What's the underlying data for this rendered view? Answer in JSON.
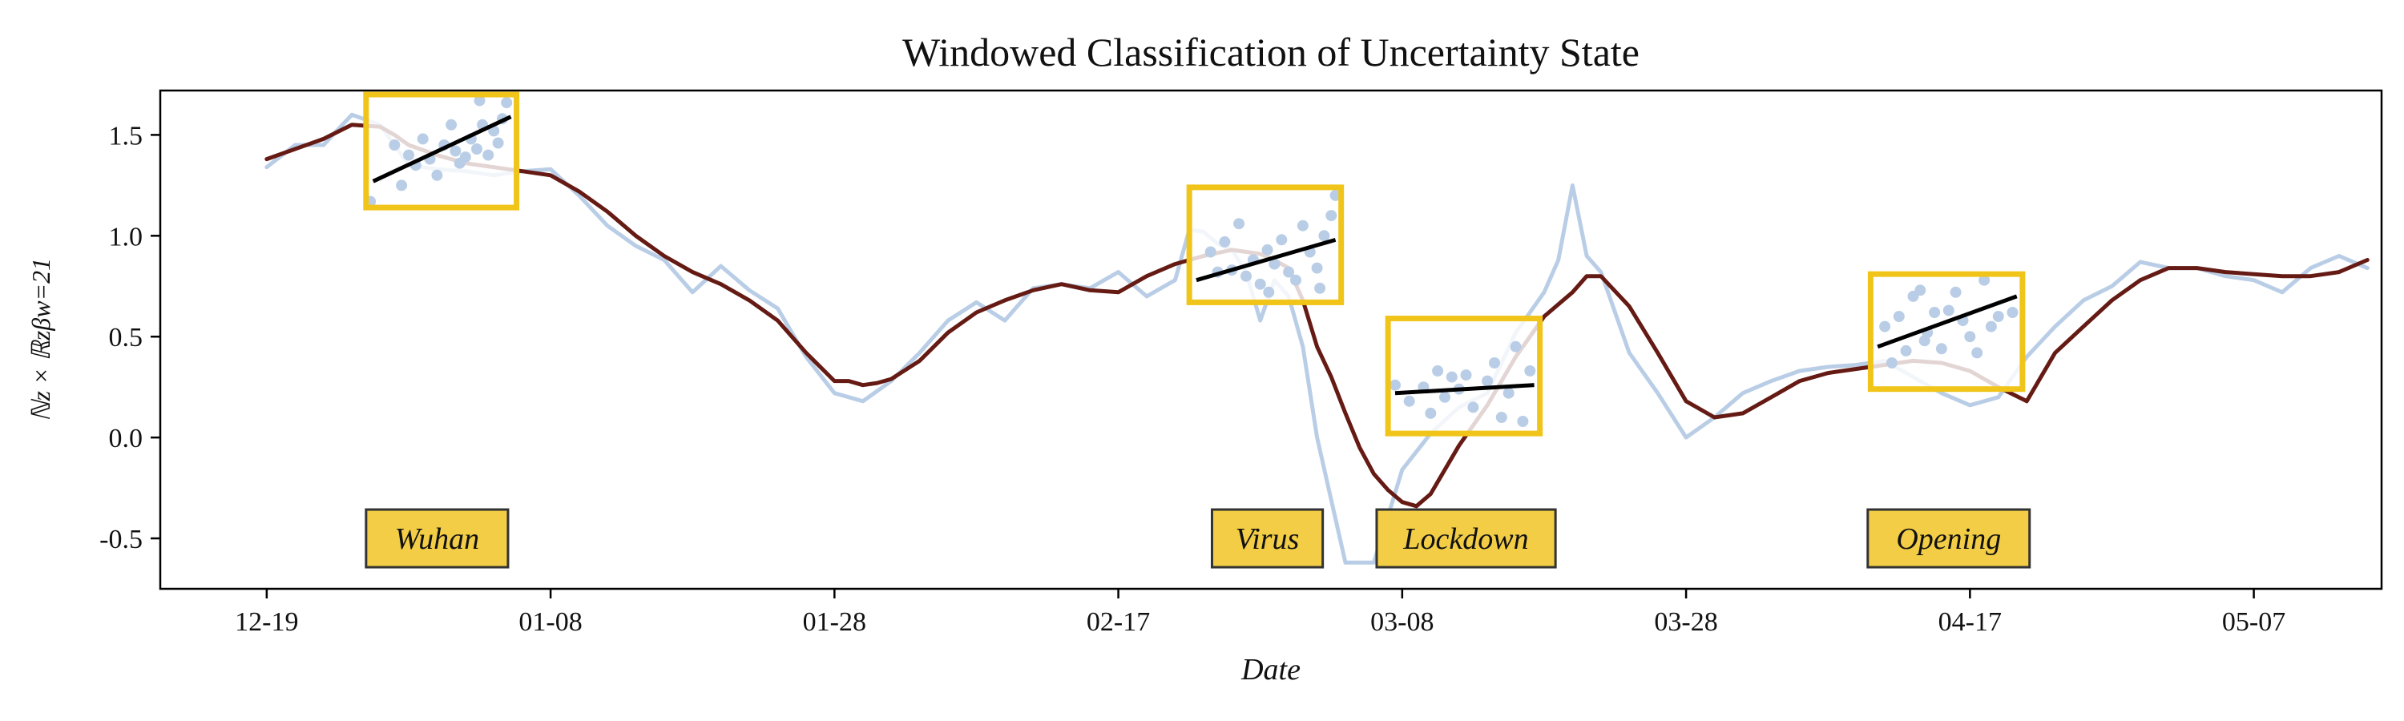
{
  "chart_data": {
    "type": "line",
    "title": "Windowed Classification of Uncertainty State",
    "xlabel": "Date",
    "ylabel": "ℕz × ℝzβw=21",
    "ylim": [
      -0.75,
      1.72
    ],
    "yticks": [
      {
        "value": 1.5,
        "label": "1.5"
      },
      {
        "value": 1.0,
        "label": "1.0"
      },
      {
        "value": 0.5,
        "label": "0.5"
      },
      {
        "value": 0.0,
        "label": "0.0"
      },
      {
        "value": -0.5,
        "label": "-0.5"
      }
    ],
    "xlim": [
      -7.5,
      149
    ],
    "xticks": [
      {
        "value": 0,
        "label": "12-19"
      },
      {
        "value": 20,
        "label": "01-08"
      },
      {
        "value": 40,
        "label": "01-28"
      },
      {
        "value": 60,
        "label": "02-17"
      },
      {
        "value": 80,
        "label": "03-08"
      },
      {
        "value": 100,
        "label": "03-28"
      },
      {
        "value": 120,
        "label": "04-17"
      },
      {
        "value": 140,
        "label": "05-07"
      }
    ],
    "colors": {
      "raw": "#b9cee6",
      "smooth": "#651a14",
      "box": "#f0c419",
      "label_fill": "#f2cd45",
      "fit": "#000000"
    },
    "series": [
      {
        "key": "raw",
        "x": [
          0,
          2,
          4,
          6,
          8,
          10,
          12,
          14,
          16,
          18,
          20,
          22,
          24,
          26,
          28,
          30,
          32,
          34,
          36,
          38,
          40,
          42,
          44,
          46,
          48,
          50,
          52,
          54,
          56,
          58,
          60,
          62,
          64,
          65,
          66,
          67,
          68,
          69,
          70,
          71,
          72,
          73,
          74,
          76,
          78,
          80,
          82,
          84,
          86,
          88,
          90,
          91,
          92,
          93,
          94,
          96,
          98,
          100,
          102,
          104,
          106,
          108,
          110,
          112,
          114,
          116,
          118,
          120,
          122,
          124,
          126,
          128,
          130,
          132,
          134,
          136,
          138,
          140,
          142,
          144,
          146,
          148
        ],
        "y": [
          1.34,
          1.45,
          1.45,
          1.6,
          1.55,
          1.35,
          1.33,
          1.32,
          1.3,
          1.32,
          1.33,
          1.2,
          1.05,
          0.95,
          0.88,
          0.72,
          0.85,
          0.73,
          0.64,
          0.4,
          0.22,
          0.18,
          0.28,
          0.42,
          0.58,
          0.67,
          0.58,
          0.74,
          0.76,
          0.74,
          0.82,
          0.7,
          0.78,
          1.03,
          1.02,
          0.96,
          0.93,
          0.82,
          0.58,
          0.78,
          0.7,
          0.45,
          0.0,
          -0.62,
          -0.62,
          -0.16,
          0.02,
          0.15,
          0.22,
          0.52,
          0.72,
          0.88,
          1.25,
          0.9,
          0.82,
          0.42,
          0.22,
          0.0,
          0.1,
          0.22,
          0.28,
          0.33,
          0.35,
          0.36,
          0.38,
          0.3,
          0.22,
          0.16,
          0.2,
          0.4,
          0.55,
          0.68,
          0.75,
          0.87,
          0.84,
          0.84,
          0.8,
          0.78,
          0.72,
          0.84,
          0.9,
          0.84
        ]
      },
      {
        "key": "smooth",
        "x": [
          0,
          2,
          4,
          6,
          8,
          9,
          10,
          12,
          14,
          16,
          18,
          20,
          22,
          24,
          26,
          28,
          30,
          32,
          34,
          36,
          38,
          40,
          41,
          42,
          43,
          44,
          46,
          48,
          50,
          52,
          54,
          56,
          58,
          60,
          62,
          64,
          66,
          68,
          70,
          71,
          72,
          73,
          74,
          75,
          76,
          77,
          78,
          79,
          80,
          81,
          82,
          84,
          86,
          88,
          90,
          92,
          93,
          94,
          96,
          98,
          100,
          102,
          104,
          106,
          108,
          110,
          112,
          114,
          116,
          118,
          120,
          122,
          124,
          126,
          128,
          130,
          132,
          134,
          136,
          138,
          140,
          142,
          144,
          146,
          148
        ],
        "y": [
          1.38,
          1.43,
          1.48,
          1.55,
          1.54,
          1.5,
          1.45,
          1.4,
          1.36,
          1.34,
          1.32,
          1.3,
          1.22,
          1.12,
          1.0,
          0.9,
          0.82,
          0.76,
          0.68,
          0.58,
          0.42,
          0.28,
          0.28,
          0.26,
          0.27,
          0.29,
          0.38,
          0.52,
          0.62,
          0.68,
          0.73,
          0.76,
          0.73,
          0.72,
          0.8,
          0.86,
          0.9,
          0.93,
          0.91,
          0.88,
          0.84,
          0.68,
          0.45,
          0.3,
          0.12,
          -0.05,
          -0.18,
          -0.26,
          -0.32,
          -0.34,
          -0.28,
          -0.04,
          0.16,
          0.4,
          0.6,
          0.72,
          0.8,
          0.8,
          0.65,
          0.42,
          0.18,
          0.1,
          0.12,
          0.2,
          0.28,
          0.32,
          0.34,
          0.36,
          0.38,
          0.37,
          0.33,
          0.25,
          0.18,
          0.42,
          0.55,
          0.68,
          0.78,
          0.84,
          0.84,
          0.82,
          0.81,
          0.8,
          0.8,
          0.82,
          0.88
        ]
      }
    ],
    "events": [
      {
        "label": "Wuhan",
        "box": {
          "x0": 7,
          "x1": 17.6,
          "y0": 1.14,
          "y1": 1.7
        },
        "fit": [
          [
            7.5,
            1.27
          ],
          [
            17.2,
            1.59
          ]
        ],
        "points": [
          [
            9,
            1.45
          ],
          [
            9.5,
            1.25
          ],
          [
            10,
            1.4
          ],
          [
            10.5,
            1.35
          ],
          [
            11,
            1.48
          ],
          [
            11.5,
            1.38
          ],
          [
            12,
            1.3
          ],
          [
            12.5,
            1.45
          ],
          [
            13,
            1.55
          ],
          [
            13.3,
            1.42
          ],
          [
            13.6,
            1.36
          ],
          [
            14,
            1.39
          ],
          [
            14.4,
            1.48
          ],
          [
            14.8,
            1.43
          ],
          [
            15.2,
            1.55
          ],
          [
            15.6,
            1.4
          ],
          [
            16,
            1.52
          ],
          [
            16.3,
            1.46
          ],
          [
            16.6,
            1.58
          ],
          [
            15,
            1.67
          ],
          [
            16.9,
            1.66
          ],
          [
            7.3,
            1.17
          ]
        ],
        "label_pos": {
          "x": 12,
          "y": -0.5
        },
        "label_w": 10
      },
      {
        "label": "Virus",
        "box": {
          "x0": 65,
          "x1": 75.7,
          "y0": 0.67,
          "y1": 1.24
        },
        "fit": [
          [
            65.5,
            0.78
          ],
          [
            75.3,
            0.98
          ]
        ],
        "points": [
          [
            66.5,
            0.92
          ],
          [
            67,
            0.82
          ],
          [
            67.5,
            0.97
          ],
          [
            68,
            0.83
          ],
          [
            68.5,
            1.06
          ],
          [
            69,
            0.8
          ],
          [
            69.5,
            0.88
          ],
          [
            70,
            0.76
          ],
          [
            70.5,
            0.93
          ],
          [
            71,
            0.86
          ],
          [
            71.5,
            0.98
          ],
          [
            72,
            0.82
          ],
          [
            72.5,
            0.78
          ],
          [
            73,
            1.05
          ],
          [
            73.5,
            0.92
          ],
          [
            74,
            0.84
          ],
          [
            74.5,
            1.0
          ],
          [
            75,
            1.1
          ],
          [
            75.3,
            1.2
          ],
          [
            74.2,
            0.74
          ],
          [
            70.6,
            0.72
          ]
        ],
        "label_pos": {
          "x": 70.5,
          "y": -0.5
        },
        "label_w": 7.8
      },
      {
        "label": "Lockdown",
        "box": {
          "x0": 79,
          "x1": 89.7,
          "y0": 0.02,
          "y1": 0.59
        },
        "fit": [
          [
            79.5,
            0.22
          ],
          [
            89.3,
            0.26
          ]
        ],
        "points": [
          [
            79.5,
            0.26
          ],
          [
            80.5,
            0.18
          ],
          [
            81.5,
            0.25
          ],
          [
            82,
            0.12
          ],
          [
            82.5,
            0.33
          ],
          [
            83,
            0.2
          ],
          [
            83.5,
            0.3
          ],
          [
            84,
            0.24
          ],
          [
            85,
            0.15
          ],
          [
            86,
            0.28
          ],
          [
            86.5,
            0.37
          ],
          [
            87,
            0.1
          ],
          [
            87.5,
            0.22
          ],
          [
            88,
            0.45
          ],
          [
            88.5,
            0.08
          ],
          [
            89,
            0.33
          ],
          [
            84.5,
            0.31
          ]
        ],
        "label_pos": {
          "x": 84.5,
          "y": -0.5
        },
        "label_w": 12.6
      },
      {
        "label": "Opening",
        "box": {
          "x0": 113,
          "x1": 123.7,
          "y0": 0.24,
          "y1": 0.81
        },
        "fit": [
          [
            113.5,
            0.45
          ],
          [
            123.3,
            0.7
          ]
        ],
        "points": [
          [
            114,
            0.55
          ],
          [
            114.5,
            0.37
          ],
          [
            115,
            0.6
          ],
          [
            115.5,
            0.43
          ],
          [
            116,
            0.7
          ],
          [
            116.5,
            0.73
          ],
          [
            117,
            0.52
          ],
          [
            117.5,
            0.62
          ],
          [
            118,
            0.44
          ],
          [
            118.5,
            0.63
          ],
          [
            119,
            0.72
          ],
          [
            119.5,
            0.58
          ],
          [
            120,
            0.5
          ],
          [
            120.5,
            0.42
          ],
          [
            121,
            0.78
          ],
          [
            121.5,
            0.55
          ],
          [
            122,
            0.6
          ],
          [
            123,
            0.62
          ],
          [
            116.8,
            0.48
          ]
        ],
        "label_pos": {
          "x": 118.5,
          "y": -0.5
        },
        "label_w": 11.4
      }
    ]
  }
}
